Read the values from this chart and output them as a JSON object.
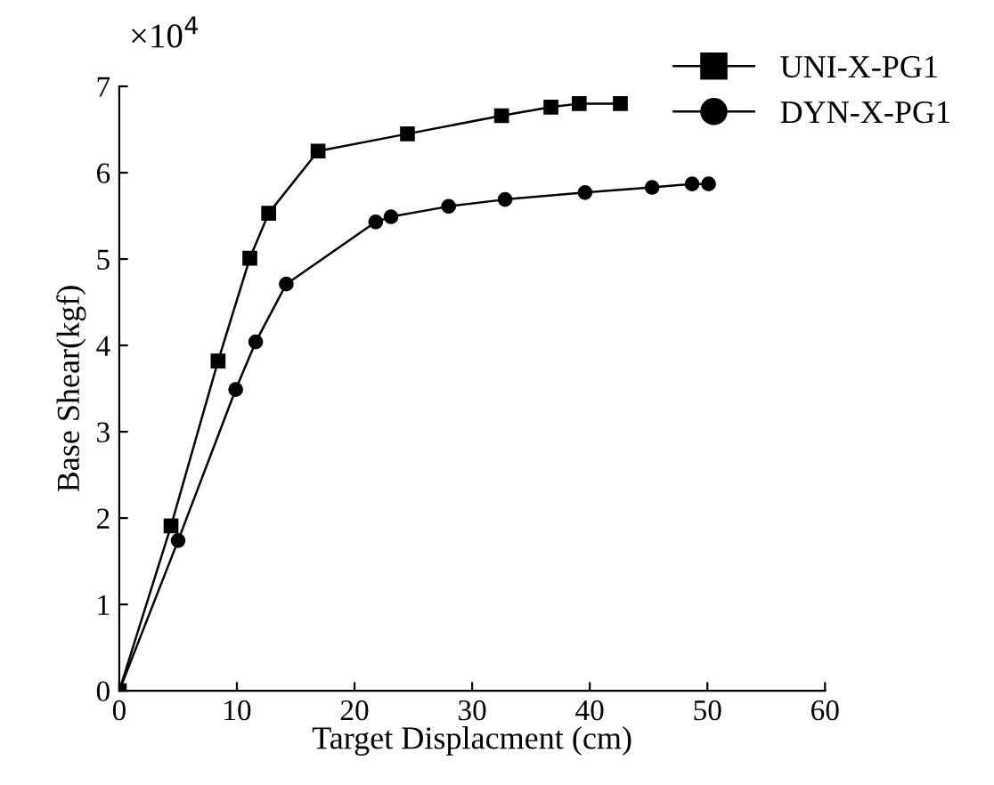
{
  "chart_data": {
    "type": "line",
    "xlabel": "Target Displacment (cm)",
    "ylabel": "Base Shear(kgf)",
    "annotations": [
      "×10$^{4}$"
    ],
    "xlim": [
      0,
      60
    ],
    "xticks": [
      0,
      10,
      20,
      30,
      40,
      50,
      60
    ],
    "ylim": [
      0,
      7
    ],
    "yticks": [
      0,
      1,
      2,
      3,
      4,
      5,
      6,
      7
    ],
    "grid": false,
    "legend": "top right",
    "line_style": "solid",
    "series": [
      {
        "name": "UNI-X-PG1",
        "color": "#000000",
        "marker": "square",
        "x": [
          0,
          4.4,
          8.4,
          11.1,
          12.7,
          16.9,
          24.5,
          32.5,
          36.7,
          39.1,
          42.6
        ],
        "values": [
          0,
          1.91,
          3.82,
          5.01,
          5.53,
          6.25,
          6.45,
          6.66,
          6.76,
          6.8,
          6.8
        ]
      },
      {
        "name": "DYN-X-PG1",
        "color": "#000000",
        "marker": "circle",
        "x": [
          0,
          5.0,
          9.9,
          11.6,
          14.2,
          21.8,
          23.1,
          28.0,
          32.8,
          39.6,
          45.3,
          48.7,
          50.1
        ],
        "values": [
          0,
          1.74,
          3.49,
          4.04,
          4.71,
          5.43,
          5.49,
          5.61,
          5.69,
          5.77,
          5.83,
          5.87,
          5.87
        ]
      }
    ]
  }
}
